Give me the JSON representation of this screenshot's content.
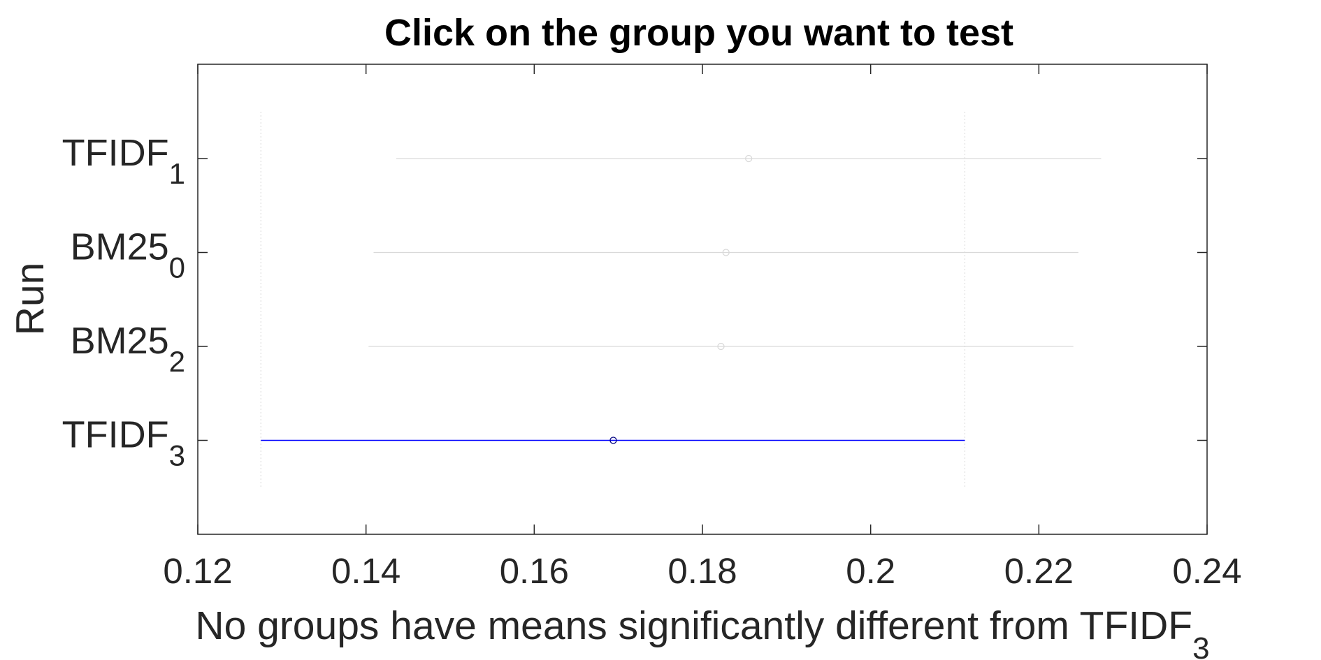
{
  "chart_data": {
    "type": "scatter",
    "title": "Click on the group you want to test",
    "ylabel": "Run",
    "xlabel": {
      "text": "No groups have means significantly different from TFIDF",
      "sub": "3"
    },
    "xlim": [
      0.12,
      0.24
    ],
    "xticks": [
      "0.12",
      "0.14",
      "0.16",
      "0.18",
      "0.2",
      "0.22",
      "0.24"
    ],
    "xtick_values": [
      0.12,
      0.14,
      0.16,
      0.18,
      0.2,
      0.22,
      0.24
    ],
    "grid": false,
    "reference_lines": [
      0.1275,
      0.2112
    ],
    "groups": [
      {
        "base": "TFIDF",
        "sub": "1",
        "mean": 0.1855,
        "low": 0.1436,
        "high": 0.2274,
        "selected": false
      },
      {
        "base": "BM25",
        "sub": "0",
        "mean": 0.1828,
        "low": 0.1409,
        "high": 0.2247,
        "selected": false
      },
      {
        "base": "BM25",
        "sub": "2",
        "mean": 0.1822,
        "low": 0.1403,
        "high": 0.2241,
        "selected": false
      },
      {
        "base": "TFIDF",
        "sub": "3",
        "mean": 0.1694,
        "low": 0.1275,
        "high": 0.2112,
        "selected": true
      }
    ],
    "colors": {
      "selected": "#0000ff",
      "selected_marker": "#000080",
      "unselected": "#d9d9d9",
      "axis": "#262626",
      "reference": "#e0e0e0"
    }
  }
}
